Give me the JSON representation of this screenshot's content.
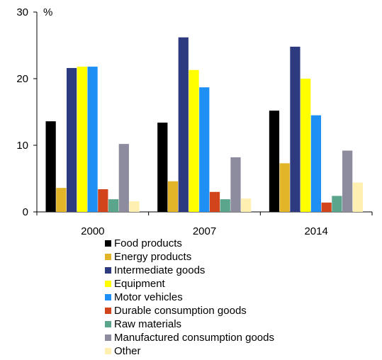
{
  "chart_data": {
    "type": "bar",
    "unit_label": "%",
    "categories": [
      "2000",
      "2007",
      "2014"
    ],
    "ylim": [
      0,
      30
    ],
    "yticks": [
      0,
      10,
      20,
      30
    ],
    "grid": false,
    "legend_position": "bottom",
    "series": [
      {
        "name": "Food products",
        "color": "#000000",
        "values": [
          13.6,
          13.4,
          15.2
        ]
      },
      {
        "name": "Energy products",
        "color": "#E2B528",
        "values": [
          3.6,
          4.6,
          7.3
        ]
      },
      {
        "name": "Intermediate goods",
        "color": "#2E3A7F",
        "values": [
          21.6,
          26.2,
          24.8
        ]
      },
      {
        "name": "Equipment",
        "color": "#FFFF00",
        "values": [
          21.8,
          21.3,
          20.0
        ]
      },
      {
        "name": "Motor vehicles",
        "color": "#1E90F5",
        "values": [
          21.8,
          18.7,
          14.5
        ]
      },
      {
        "name": "Durable consumption goods",
        "color": "#D2441C",
        "values": [
          3.4,
          3.0,
          1.4
        ]
      },
      {
        "name": "Raw materials",
        "color": "#5BA58C",
        "values": [
          1.9,
          1.9,
          2.4
        ]
      },
      {
        "name": "Manufactured consumption goods",
        "color": "#8C8C9E",
        "values": [
          10.2,
          8.2,
          9.2
        ]
      },
      {
        "name": "Other",
        "color": "#FFEFB0",
        "values": [
          1.6,
          2.0,
          4.4
        ]
      }
    ]
  }
}
